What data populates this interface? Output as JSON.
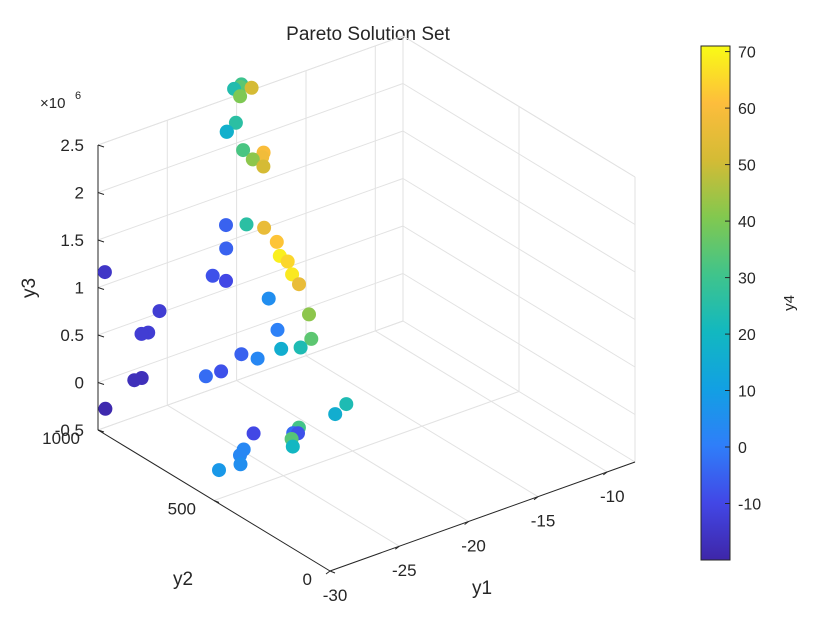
{
  "chart_data": {
    "type": "scatter3",
    "title": "Pareto Solution Set",
    "xlabel": "y1",
    "ylabel": "y2",
    "zlabel": "y3",
    "zscale_label": "×10",
    "zscale_exp": "6",
    "colorbar_label": "y4",
    "grid": true,
    "xlim": [
      -30,
      -8
    ],
    "ylim": [
      0,
      1000
    ],
    "zlim": [
      -0.5,
      2.5
    ],
    "xticks": [
      -30,
      -25,
      -20,
      -15,
      -10
    ],
    "yticks": [
      0,
      500,
      1000
    ],
    "zticks": [
      -0.5,
      0,
      0.5,
      1,
      1.5,
      2,
      2.5
    ],
    "xtick_labels": [
      "-30",
      "-25",
      "-20",
      "-15",
      "-10"
    ],
    "ytick_labels": [
      "0",
      "500",
      "1000"
    ],
    "ztick_labels": [
      "-0.5",
      "0",
      "0.5",
      "1",
      "1.5",
      "2",
      "2.5"
    ],
    "colorbar_ticks": [
      -10,
      0,
      10,
      20,
      30,
      40,
      50,
      60,
      70
    ],
    "colorbar_tick_labels": [
      "-10",
      "0",
      "10",
      "20",
      "30",
      "40",
      "50",
      "60",
      "70"
    ],
    "color_range": [
      -20,
      71
    ],
    "colormap": [
      "#3e26a8",
      "#4247e6",
      "#2f7ef9",
      "#12a0e3",
      "#12b8c0",
      "#40c48b",
      "#82c84f",
      "#d4bb35",
      "#fdbd3c",
      "#f9fb15"
    ],
    "points": [
      {
        "y1": -29.6,
        "y2": 994,
        "y3": 1.15,
        "y4": -15
      },
      {
        "y1": -29.5,
        "y2": 998,
        "y3": -0.3,
        "y4": -19
      },
      {
        "y1": -28.6,
        "y2": 927,
        "y3": 0.06,
        "y4": -17
      },
      {
        "y1": -28.1,
        "y2": 925,
        "y3": 0.06,
        "y4": -17
      },
      {
        "y1": -27.8,
        "y2": 944,
        "y3": 0.48,
        "y4": -13
      },
      {
        "y1": -27.4,
        "y2": 939,
        "y3": 0.48,
        "y4": -13
      },
      {
        "y1": -26.7,
        "y2": 932,
        "y3": 0.68,
        "y4": -13
      },
      {
        "y1": -23.7,
        "y2": 882,
        "y3": 0.97,
        "y4": -8
      },
      {
        "y1": -26.4,
        "y2": 587,
        "y3": -0.28,
        "y4": 3
      },
      {
        "y1": -26.5,
        "y2": 597,
        "y3": -0.35,
        "y4": 3
      },
      {
        "y1": -28.0,
        "y2": 598,
        "y3": -0.43,
        "y4": 8
      },
      {
        "y1": -27.3,
        "y2": 547,
        "y3": -0.33,
        "y4": 5
      },
      {
        "y1": -25.1,
        "y2": 622,
        "y3": -0.23,
        "y4": -10
      },
      {
        "y1": -23.3,
        "y2": 566,
        "y3": -0.3,
        "y4": 34
      },
      {
        "y1": -23.6,
        "y2": 543,
        "y3": -0.33,
        "y4": 20
      },
      {
        "y1": -22.5,
        "y2": 607,
        "y3": -0.34,
        "y4": -3
      },
      {
        "y1": -21.9,
        "y2": 618,
        "y3": -0.33,
        "y4": 31
      },
      {
        "y1": -22.3,
        "y2": 598,
        "y3": -0.34,
        "y4": -8
      },
      {
        "y1": -25.7,
        "y2": 792,
        "y3": 0.15,
        "y4": -3
      },
      {
        "y1": -23.0,
        "y2": 800,
        "y3": 0.23,
        "y4": -5
      },
      {
        "y1": -24.5,
        "y2": 798,
        "y3": 0.13,
        "y4": -8
      },
      {
        "y1": -22.1,
        "y2": 784,
        "y3": 0.16,
        "y4": 3
      },
      {
        "y1": -20.3,
        "y2": 790,
        "y3": 0.16,
        "y4": 16
      },
      {
        "y1": -19.6,
        "y2": 748,
        "y3": 0.2,
        "y4": 23
      },
      {
        "y1": -18.9,
        "y2": 744,
        "y3": 0.26,
        "y4": 35
      },
      {
        "y1": -19.6,
        "y2": 599,
        "y3": -0.28,
        "y4": 16
      },
      {
        "y1": -18.7,
        "y2": 605,
        "y3": -0.23,
        "y4": 23
      },
      {
        "y1": -20.9,
        "y2": 770,
        "y3": 0.42,
        "y4": 1
      },
      {
        "y1": -19.3,
        "y2": 730,
        "y3": 0.56,
        "y4": 42
      },
      {
        "y1": -21.3,
        "y2": 784,
        "y3": 0.75,
        "y4": 5
      },
      {
        "y1": -19.8,
        "y2": 792,
        "y3": 1.05,
        "y4": 65
      },
      {
        "y1": -20.3,
        "y2": 796,
        "y3": 1.13,
        "y4": 69
      },
      {
        "y1": -20.6,
        "y2": 791,
        "y3": 1.3,
        "y4": 62
      },
      {
        "y1": -21.4,
        "y2": 798,
        "y3": 1.48,
        "y4": 56
      },
      {
        "y1": -19.5,
        "y2": 791,
        "y3": 0.9,
        "y4": 68
      },
      {
        "y1": -19.2,
        "y2": 779,
        "y3": 0.8,
        "y4": 56
      },
      {
        "y1": -22.8,
        "y2": 790,
        "y3": 1.6,
        "y4": 26
      },
      {
        "y1": -24.1,
        "y2": 800,
        "y3": 1.4,
        "y4": -5
      },
      {
        "y1": -24.0,
        "y2": 807,
        "y3": 1.63,
        "y4": -5
      },
      {
        "y1": -24.4,
        "y2": 783,
        "y3": 1.1,
        "y4": -10
      },
      {
        "y1": -21.4,
        "y2": 801,
        "y3": 2.12,
        "y4": 51
      },
      {
        "y1": -21.6,
        "y2": 794,
        "y3": 2.24,
        "y4": 58
      },
      {
        "y1": -21.2,
        "y2": 812,
        "y3": 2.24,
        "y4": 60
      },
      {
        "y1": -22.2,
        "y2": 799,
        "y3": 2.24,
        "y4": 42
      },
      {
        "y1": -22.8,
        "y2": 805,
        "y3": 2.36,
        "y4": 32
      },
      {
        "y1": -24.0,
        "y2": 803,
        "y3": 2.62,
        "y4": 20
      },
      {
        "y1": -24.1,
        "y2": 798,
        "y3": 2.63,
        "y4": 17
      },
      {
        "y1": -23.5,
        "y2": 794,
        "y3": 2.7,
        "y4": 26
      },
      {
        "y1": -23.1,
        "y2": 800,
        "y3": 2.95,
        "y4": 40
      },
      {
        "y1": -22.3,
        "y2": 798,
        "y3": 3.0,
        "y4": 51
      },
      {
        "y1": -23.0,
        "y2": 800,
        "y3": 3.07,
        "y4": 30
      },
      {
        "y1": -23.6,
        "y2": 796,
        "y3": 3.06,
        "y4": 24
      },
      {
        "y1": -23.1,
        "y2": 798,
        "y3": 3.05,
        "y4": 35
      }
    ]
  }
}
